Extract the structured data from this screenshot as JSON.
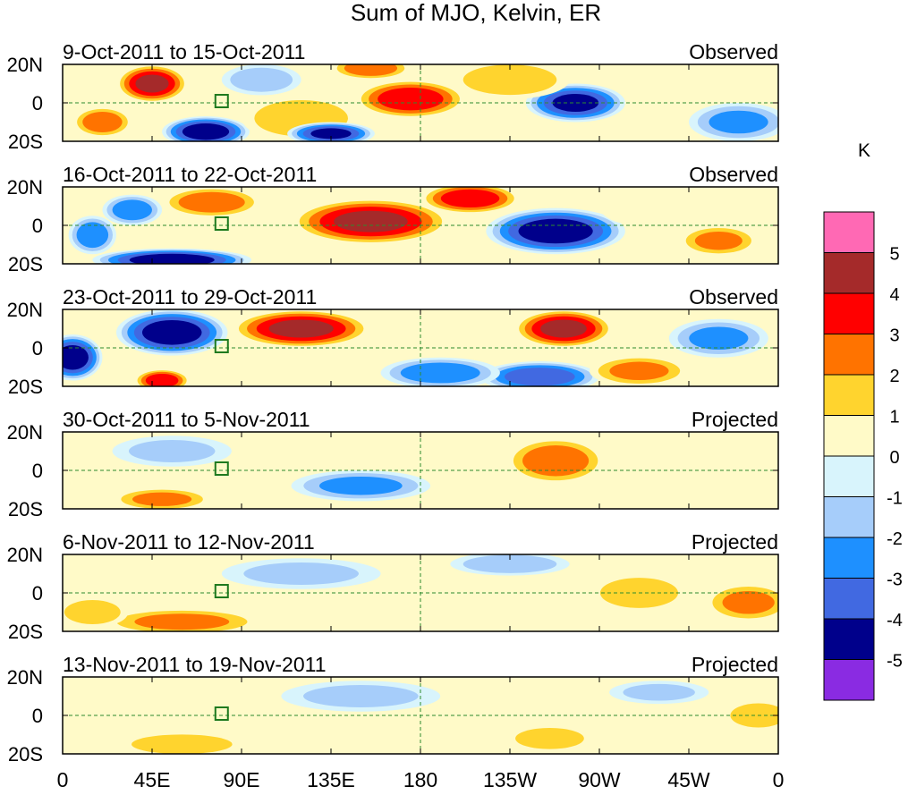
{
  "chart_data": {
    "type": "heatmap",
    "title": "Sum of MJO, Kelvin, ER",
    "colorbar": {
      "unit": "K",
      "levels": [
        -5,
        -4,
        -3,
        -2,
        -1,
        0,
        1,
        2,
        3,
        4,
        5
      ],
      "colors": [
        "#8a2be2",
        "#00008b",
        "#4169e1",
        "#1e90ff",
        "#a6cdfa",
        "#d8f4fc",
        "#fffac8",
        "#ffd42e",
        "#ff7300",
        "#ff0000",
        "#a52a2a",
        "#ff69b4"
      ]
    },
    "x_ticks": [
      "0",
      "45E",
      "90E",
      "135E",
      "180",
      "135W",
      "90W",
      "45W",
      "0"
    ],
    "y_ticks": [
      "20N",
      "0",
      "20S"
    ],
    "panels": [
      {
        "left_label": "9-Oct-2011 to 15-Oct-2011",
        "right_label": "Observed",
        "blobs": [
          {
            "lon": 45,
            "lat": 10,
            "w": 18,
            "h": 10,
            "v": 4.5
          },
          {
            "lon": 72,
            "lat": -15,
            "w": 22,
            "h": 8,
            "v": -5.0
          },
          {
            "lon": 20,
            "lat": -10,
            "w": 15,
            "h": 8,
            "v": 3.0
          },
          {
            "lon": 120,
            "lat": -8,
            "w": 30,
            "h": 12,
            "v": 2.0
          },
          {
            "lon": 175,
            "lat": 2,
            "w": 28,
            "h": 10,
            "v": 4.0
          },
          {
            "lon": 135,
            "lat": -16,
            "w": 22,
            "h": 6,
            "v": -4.5
          },
          {
            "lon": 155,
            "lat": 18,
            "w": 20,
            "h": 6,
            "v": 3.0
          },
          {
            "lon": 258,
            "lat": 0,
            "w": 25,
            "h": 10,
            "v": -4.5
          },
          {
            "lon": 225,
            "lat": 12,
            "w": 30,
            "h": 10,
            "v": 2.0
          },
          {
            "lon": 300,
            "lat": 15,
            "w": 25,
            "h": 8,
            "v": 1.0
          },
          {
            "lon": 100,
            "lat": 12,
            "w": 20,
            "h": 8,
            "v": -2.0
          },
          {
            "lon": 340,
            "lat": -10,
            "w": 25,
            "h": 10,
            "v": -2.5
          }
        ]
      },
      {
        "left_label": "16-Oct-2011 to 22-Oct-2011",
        "right_label": "Observed",
        "blobs": [
          {
            "lon": 155,
            "lat": 2,
            "w": 40,
            "h": 12,
            "v": 4.5
          },
          {
            "lon": 205,
            "lat": 14,
            "w": 25,
            "h": 8,
            "v": 4.0
          },
          {
            "lon": 248,
            "lat": -3,
            "w": 35,
            "h": 12,
            "v": -5.0
          },
          {
            "lon": 55,
            "lat": -18,
            "w": 40,
            "h": 6,
            "v": -5.0
          },
          {
            "lon": 75,
            "lat": 12,
            "w": 25,
            "h": 8,
            "v": 3.0
          },
          {
            "lon": 35,
            "lat": 8,
            "w": 15,
            "h": 8,
            "v": -3.0
          },
          {
            "lon": 15,
            "lat": -5,
            "w": 12,
            "h": 10,
            "v": -3.0
          },
          {
            "lon": 330,
            "lat": -8,
            "w": 20,
            "h": 8,
            "v": 2.5
          },
          {
            "lon": 290,
            "lat": 10,
            "w": 20,
            "h": 10,
            "v": 1.0
          }
        ]
      },
      {
        "left_label": "23-Oct-2011 to 29-Oct-2011",
        "right_label": "Observed",
        "blobs": [
          {
            "lon": 55,
            "lat": 8,
            "w": 28,
            "h": 12,
            "v": -5.0
          },
          {
            "lon": 5,
            "lat": -5,
            "w": 15,
            "h": 12,
            "v": -5.0
          },
          {
            "lon": 120,
            "lat": 10,
            "w": 35,
            "h": 10,
            "v": 4.5
          },
          {
            "lon": 252,
            "lat": 10,
            "w": 25,
            "h": 10,
            "v": 4.5
          },
          {
            "lon": 50,
            "lat": -17,
            "w": 14,
            "h": 6,
            "v": 4.0
          },
          {
            "lon": 240,
            "lat": -15,
            "w": 30,
            "h": 8,
            "v": -4.0
          },
          {
            "lon": 190,
            "lat": -13,
            "w": 30,
            "h": 8,
            "v": -3.0
          },
          {
            "lon": 290,
            "lat": -12,
            "w": 25,
            "h": 8,
            "v": 2.5
          },
          {
            "lon": 330,
            "lat": 5,
            "w": 25,
            "h": 10,
            "v": -2.5
          }
        ]
      },
      {
        "left_label": "30-Oct-2011 to 5-Nov-2011",
        "right_label": "Projected",
        "blobs": [
          {
            "lon": 248,
            "lat": 5,
            "w": 25,
            "h": 12,
            "v": 3.0
          },
          {
            "lon": 50,
            "lat": -15,
            "w": 25,
            "h": 6,
            "v": 2.5
          },
          {
            "lon": 150,
            "lat": -8,
            "w": 35,
            "h": 8,
            "v": -2.5
          },
          {
            "lon": 55,
            "lat": 10,
            "w": 30,
            "h": 8,
            "v": -1.5
          },
          {
            "lon": 300,
            "lat": -10,
            "w": 25,
            "h": 10,
            "v": 1.0
          },
          {
            "lon": 330,
            "lat": 5,
            "w": 25,
            "h": 10,
            "v": 1.0
          }
        ]
      },
      {
        "left_label": "6-Nov-2011 to 12-Nov-2011",
        "right_label": "Projected",
        "blobs": [
          {
            "lon": 60,
            "lat": -15,
            "w": 40,
            "h": 7,
            "v": 2.5
          },
          {
            "lon": 290,
            "lat": 0,
            "w": 25,
            "h": 10,
            "v": 2.0
          },
          {
            "lon": 345,
            "lat": -5,
            "w": 22,
            "h": 10,
            "v": 2.5
          },
          {
            "lon": 120,
            "lat": 10,
            "w": 40,
            "h": 8,
            "v": -1.5
          },
          {
            "lon": 225,
            "lat": 15,
            "w": 30,
            "h": 6,
            "v": -2.0
          },
          {
            "lon": 15,
            "lat": -10,
            "w": 18,
            "h": 8,
            "v": 2.0
          },
          {
            "lon": 180,
            "lat": -12,
            "w": 30,
            "h": 8,
            "v": 1.0
          }
        ]
      },
      {
        "left_label": "13-Nov-2011 to 19-Nov-2011",
        "right_label": "Projected",
        "blobs": [
          {
            "lon": 245,
            "lat": -12,
            "w": 22,
            "h": 7,
            "v": 2.0
          },
          {
            "lon": 350,
            "lat": 0,
            "w": 18,
            "h": 8,
            "v": 2.0
          },
          {
            "lon": 60,
            "lat": -15,
            "w": 35,
            "h": 7,
            "v": 1.5
          },
          {
            "lon": 150,
            "lat": 10,
            "w": 40,
            "h": 8,
            "v": -1.5
          },
          {
            "lon": 300,
            "lat": 12,
            "w": 25,
            "h": 6,
            "v": -1.5
          },
          {
            "lon": 190,
            "lat": -10,
            "w": 30,
            "h": 8,
            "v": 1.0
          }
        ]
      }
    ]
  }
}
